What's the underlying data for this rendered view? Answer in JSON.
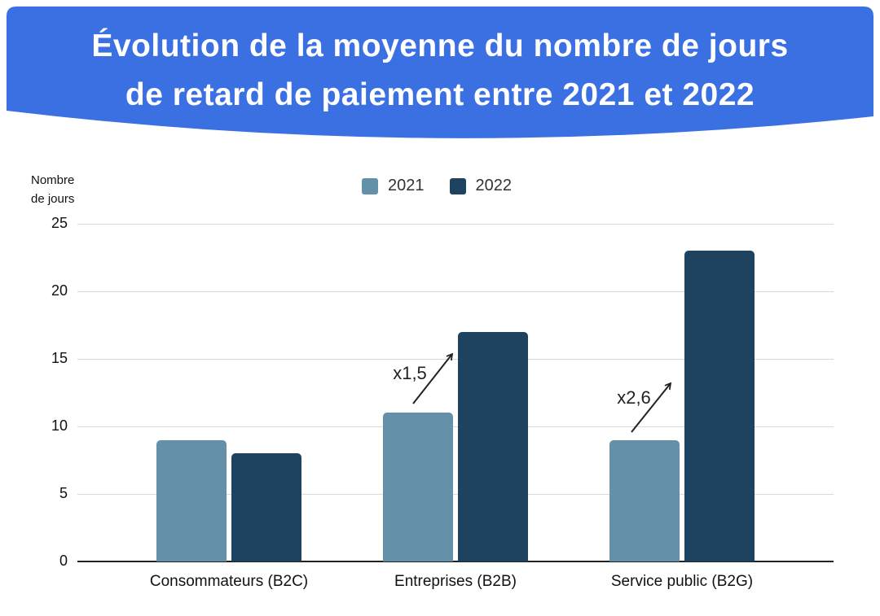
{
  "header": {
    "title_line1": "Évolution de la moyenne du nombre de jours",
    "title_line2": "de retard de paiement entre 2021 et 2022",
    "background_color": "#3B70E3",
    "text_color": "#FFFFFF"
  },
  "chart_data": {
    "type": "bar",
    "title": "Évolution de la moyenne du nombre de jours de retard de paiement entre 2021 et 2022",
    "ylabel": "Nombre de jours",
    "xlabel": "",
    "categories": [
      "Consommateurs (B2C)",
      "Entreprises (B2B)",
      "Service public (B2G)"
    ],
    "series": [
      {
        "name": "2021",
        "color": "#6490A9",
        "values": [
          9,
          11,
          9
        ]
      },
      {
        "name": "2022",
        "color": "#1D4360",
        "values": [
          8,
          17,
          23
        ]
      }
    ],
    "yticks": [
      0,
      5,
      10,
      15,
      20,
      25
    ],
    "ylim": [
      0,
      25
    ],
    "grid": true,
    "legend_position": "top-center",
    "annotations": [
      {
        "label": "x1,5",
        "category": "Entreprises (B2B)",
        "meaning": "2022 is 1.5 times 2021"
      },
      {
        "label": "x2,6",
        "category": "Service public (B2G)",
        "meaning": "2022 is 2.6 times 2021"
      }
    ],
    "colors": {
      "gridline": "#D9D9D9",
      "axis_line": "#212121",
      "tick_text": "#111111",
      "annotation_text": "#222222"
    }
  }
}
